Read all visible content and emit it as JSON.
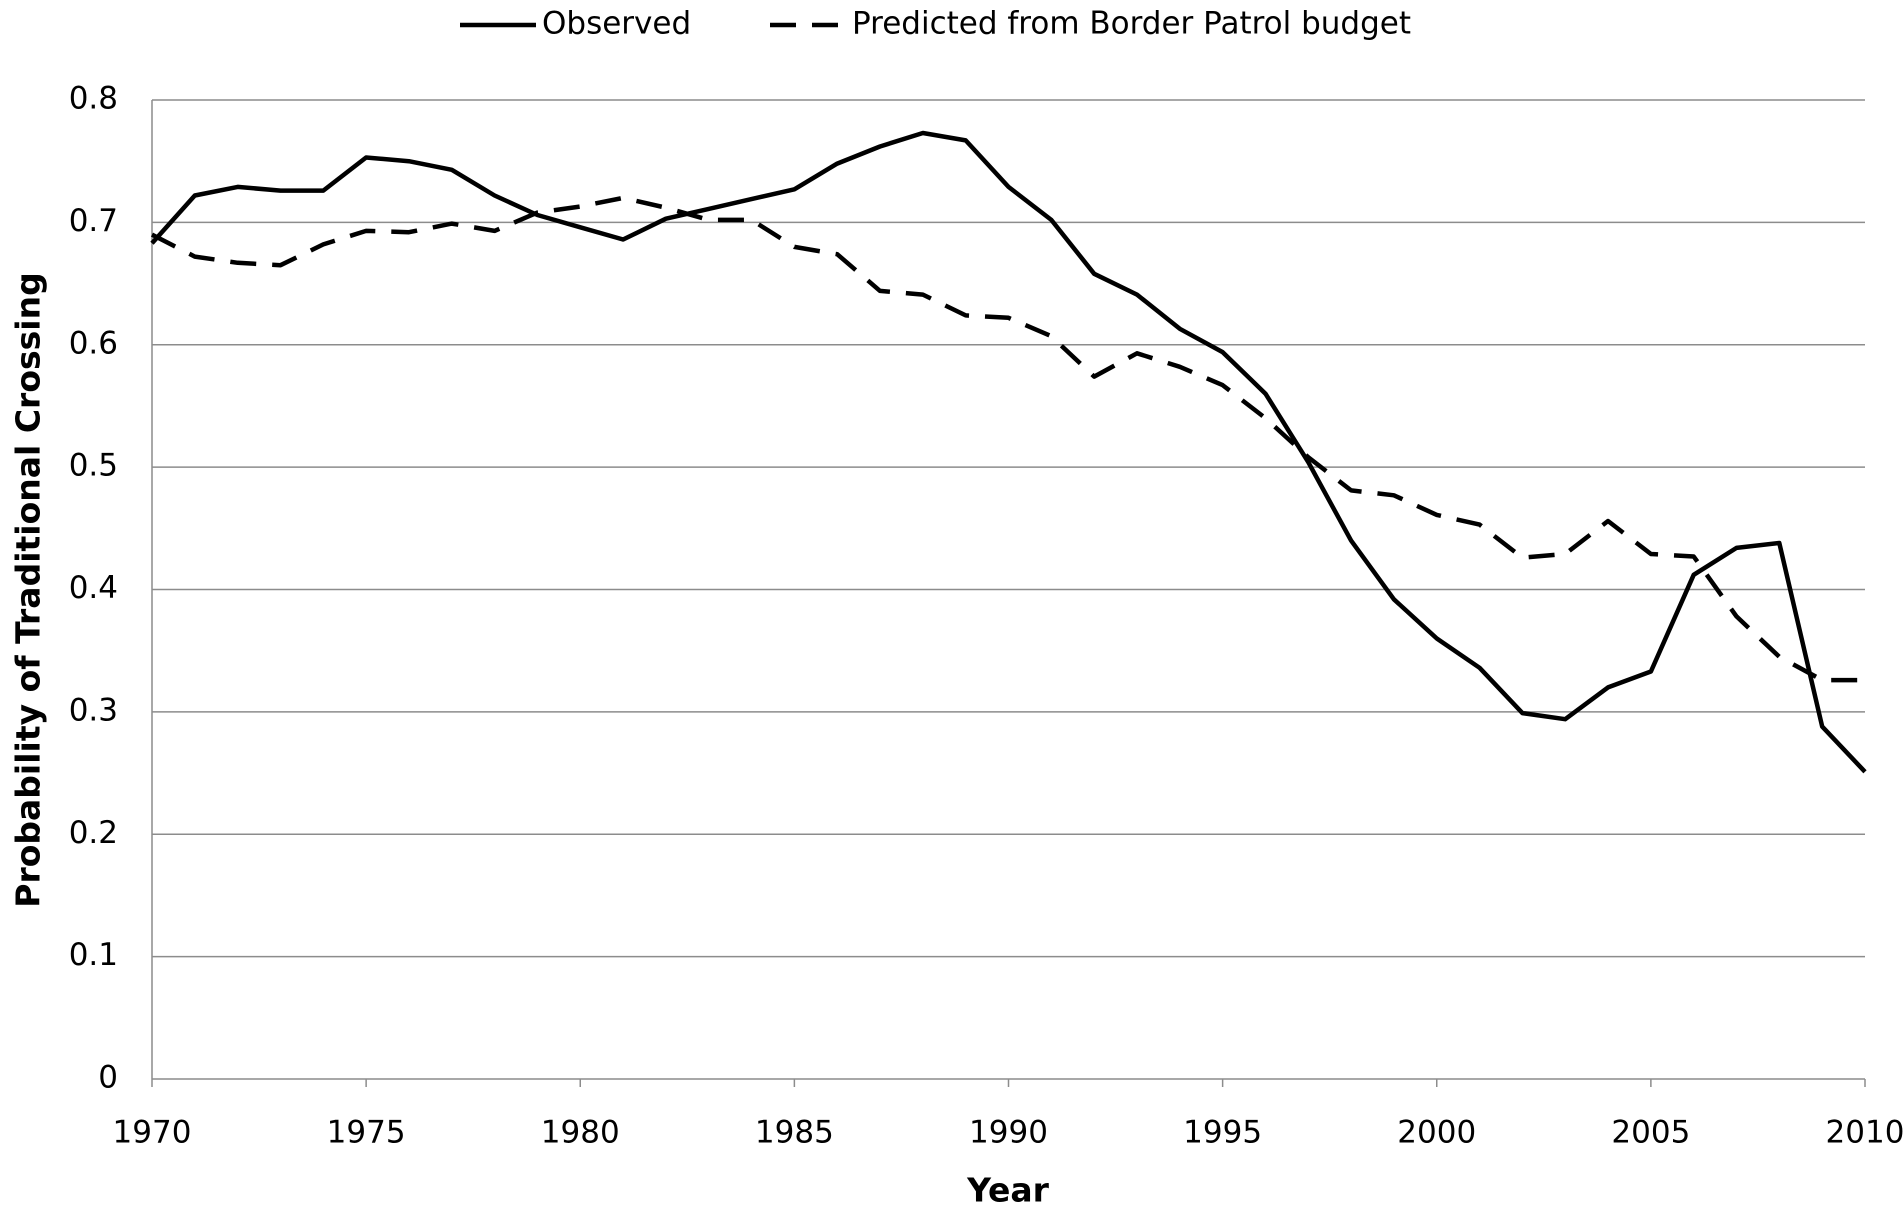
{
  "chart_data": {
    "type": "line",
    "x_label": "Year",
    "y_label": "Probability of Traditional Crossing",
    "x": [
      1970,
      1971,
      1972,
      1973,
      1974,
      1975,
      1976,
      1977,
      1978,
      1979,
      1980,
      1981,
      1982,
      1983,
      1984,
      1985,
      1986,
      1987,
      1988,
      1989,
      1990,
      1991,
      1992,
      1993,
      1994,
      1995,
      1996,
      1997,
      1998,
      1999,
      2000,
      2001,
      2002,
      2003,
      2004,
      2005,
      2006,
      2007,
      2008,
      2009,
      2010
    ],
    "series": [
      {
        "name": "Observed",
        "color": "#000000",
        "dash": false,
        "values": [
          0.683,
          0.722,
          0.729,
          0.726,
          0.726,
          0.753,
          0.75,
          0.743,
          0.722,
          0.706,
          0.696,
          0.686,
          0.703,
          0.711,
          0.719,
          0.727,
          0.748,
          0.762,
          0.773,
          0.767,
          0.729,
          0.702,
          0.658,
          0.641,
          0.613,
          0.594,
          0.56,
          0.504,
          0.44,
          0.392,
          0.36,
          0.336,
          0.299,
          0.294,
          0.32,
          0.333,
          0.412,
          0.434,
          0.438,
          0.288,
          0.251
        ]
      },
      {
        "name": "Predicted from Border Patrol budget",
        "color": "#000000",
        "dash": true,
        "values": [
          0.69,
          0.672,
          0.667,
          0.665,
          0.682,
          0.693,
          0.692,
          0.699,
          0.693,
          0.708,
          0.713,
          0.72,
          0.712,
          0.702,
          0.702,
          0.68,
          0.674,
          0.644,
          0.641,
          0.624,
          0.622,
          0.607,
          0.574,
          0.593,
          0.582,
          0.567,
          0.54,
          0.508,
          0.481,
          0.477,
          0.461,
          0.453,
          0.426,
          0.429,
          0.456,
          0.429,
          0.427,
          0.378,
          0.345,
          0.326,
          0.326
        ]
      }
    ],
    "xlim": [
      1970,
      2010
    ],
    "xticks": [
      1970,
      1975,
      1980,
      1985,
      1990,
      1995,
      2000,
      2005,
      2010
    ],
    "ylim": [
      0,
      0.8
    ],
    "yticks": [
      0,
      0.1,
      0.2,
      0.3,
      0.4,
      0.5,
      0.6,
      0.7,
      0.8
    ],
    "grid": true,
    "legend": "top"
  }
}
